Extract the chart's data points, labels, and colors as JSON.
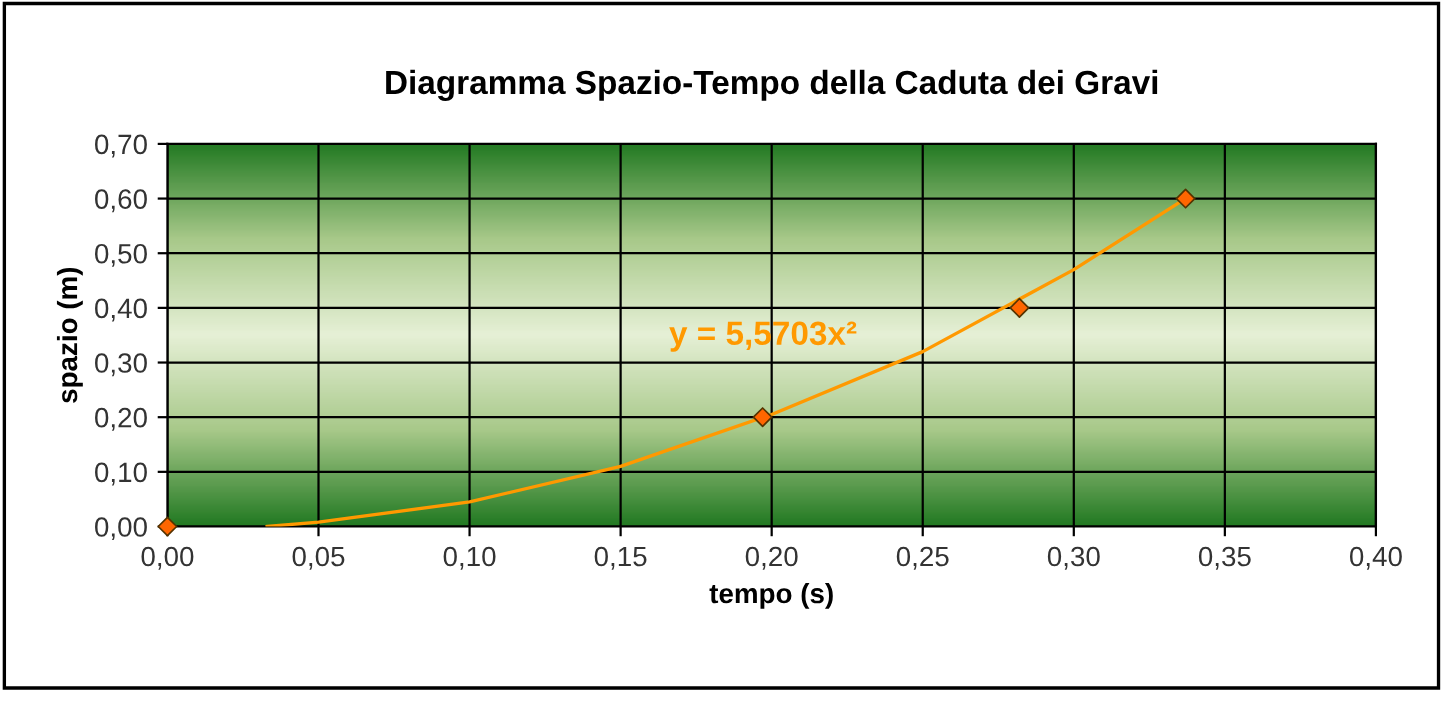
{
  "chart_data": {
    "type": "scatter",
    "title": "Diagramma Spazio-Tempo della Caduta dei Gravi",
    "xlabel": "tempo (s)",
    "ylabel": "spazio (m)",
    "series": [
      {
        "color": "#ff6600",
        "marker": "diamond",
        "x": [
          0.0,
          0.197,
          0.282,
          0.337
        ],
        "values": [
          0.0,
          0.2,
          0.4,
          0.6
        ]
      },
      {
        "type": "line",
        "color": "#ff9900",
        "marker": "none",
        "x": [
          0.033,
          0.05,
          0.1,
          0.15,
          0.2,
          0.25,
          0.3,
          0.337
        ],
        "values": [
          0.0,
          0.008,
          0.045,
          0.11,
          0.205,
          0.32,
          0.47,
          0.6
        ]
      }
    ],
    "annotations": [
      "y = 5,5703x²"
    ],
    "xlim": [
      0,
      0.4
    ],
    "ylim": [
      0,
      0.7
    ],
    "xticks": [
      {
        "value": 0,
        "label": "0,00"
      },
      {
        "value": 0.05,
        "label": "0,05"
      },
      {
        "value": 0.1,
        "label": "0,10"
      },
      {
        "value": 0.15,
        "label": "0,15"
      },
      {
        "value": 0.2,
        "label": "0,20"
      },
      {
        "value": 0.25,
        "label": "0,25"
      },
      {
        "value": 0.3,
        "label": "0,30"
      },
      {
        "value": 0.35,
        "label": "0,35"
      },
      {
        "value": 0.4,
        "label": "0,40"
      }
    ],
    "yticks": [
      {
        "value": 0,
        "label": "0,00"
      },
      {
        "value": 0.1,
        "label": "0,10"
      },
      {
        "value": 0.2,
        "label": "0,20"
      },
      {
        "value": 0.3,
        "label": "0,30"
      },
      {
        "value": 0.4,
        "label": "0,40"
      },
      {
        "value": 0.5,
        "label": "0,50"
      },
      {
        "value": 0.6,
        "label": "0,60"
      },
      {
        "value": 0.7,
        "label": "0,70"
      }
    ],
    "grid": true,
    "legend": false
  }
}
